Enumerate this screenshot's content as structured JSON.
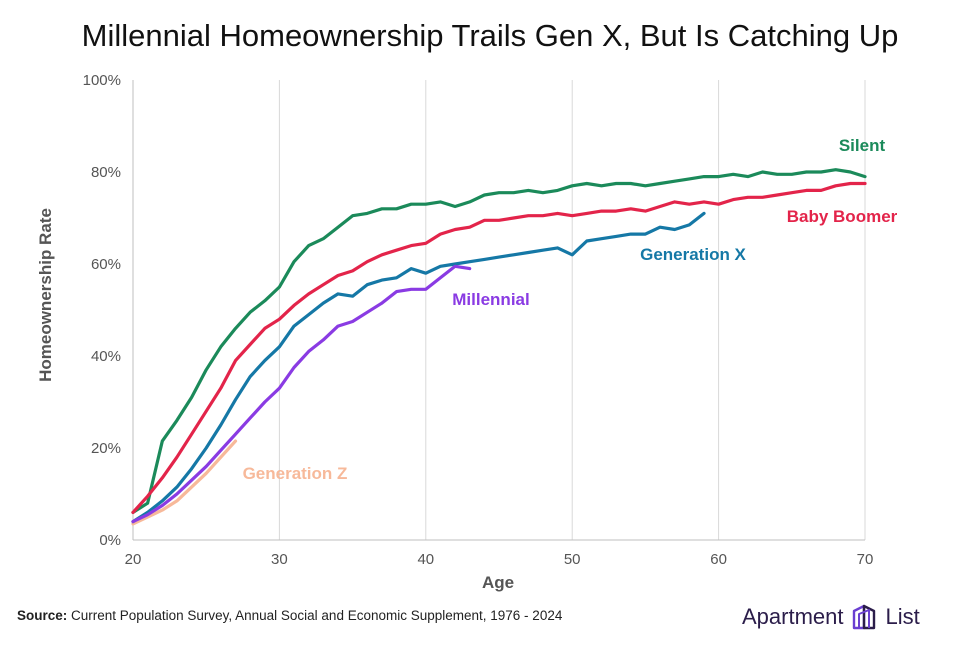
{
  "chart_data": {
    "type": "line",
    "title": "Millennial Homeownership Trails Gen X, But Is Catching Up",
    "xlabel": "Age",
    "ylabel": "Homeownership Rate",
    "xlim": [
      20,
      70
    ],
    "ylim": [
      0,
      100
    ],
    "xticks": [
      20,
      30,
      40,
      50,
      60,
      70
    ],
    "yticks": [
      0,
      20,
      40,
      60,
      80,
      100
    ],
    "ytick_labels": [
      "0%",
      "20%",
      "40%",
      "60%",
      "80%",
      "100%"
    ],
    "grid": "vertical",
    "series": [
      {
        "name": "Silent",
        "color": "#1b8a5a",
        "x": [
          20,
          21,
          22,
          23,
          24,
          25,
          26,
          27,
          28,
          29,
          30,
          31,
          32,
          33,
          34,
          35,
          36,
          37,
          38,
          39,
          40,
          41,
          42,
          43,
          44,
          45,
          46,
          47,
          48,
          49,
          50,
          51,
          52,
          53,
          54,
          55,
          56,
          57,
          58,
          59,
          60,
          61,
          62,
          63,
          64,
          65,
          66,
          67,
          68,
          69,
          70
        ],
        "y": [
          6,
          8,
          21.5,
          26,
          31,
          37,
          42,
          46,
          49.5,
          52,
          55,
          60.5,
          64,
          65.5,
          68,
          70.5,
          71,
          72,
          72,
          73,
          73,
          73.5,
          72.5,
          73.5,
          75,
          75.5,
          75.5,
          76,
          75.5,
          76,
          77,
          77.5,
          77,
          77.5,
          77.5,
          77,
          77.5,
          78,
          78.5,
          79,
          79,
          79.5,
          79,
          80,
          79.5,
          79.5,
          80,
          80,
          80.5,
          80,
          79
        ]
      },
      {
        "name": "Baby Boomer",
        "color": "#e3244a",
        "x": [
          20,
          21,
          22,
          23,
          24,
          25,
          26,
          27,
          28,
          29,
          30,
          31,
          32,
          33,
          34,
          35,
          36,
          37,
          38,
          39,
          40,
          41,
          42,
          43,
          44,
          45,
          46,
          47,
          48,
          49,
          50,
          51,
          52,
          53,
          54,
          55,
          56,
          57,
          58,
          59,
          60,
          61,
          62,
          63,
          64,
          65,
          66,
          67,
          68,
          69,
          70
        ],
        "y": [
          6,
          9.5,
          13.5,
          18,
          23,
          28,
          33,
          39,
          42.5,
          46,
          48,
          51,
          53.5,
          55.5,
          57.5,
          58.5,
          60.5,
          62,
          63,
          64,
          64.5,
          66.5,
          67.5,
          68,
          69.5,
          69.5,
          70,
          70.5,
          70.5,
          71,
          70.5,
          71,
          71.5,
          71.5,
          72,
          71.5,
          72.5,
          73.5,
          73,
          73.5,
          73,
          74,
          74.5,
          74.5,
          75,
          75.5,
          76,
          76,
          77,
          77.5,
          77.5
        ]
      },
      {
        "name": "Generation X",
        "color": "#1578a6",
        "x": [
          20,
          21,
          22,
          23,
          24,
          25,
          26,
          27,
          28,
          29,
          30,
          31,
          32,
          33,
          34,
          35,
          36,
          37,
          38,
          39,
          40,
          41,
          42,
          43,
          44,
          45,
          46,
          47,
          48,
          49,
          50,
          51,
          52,
          53,
          54,
          55,
          56,
          57,
          58,
          59
        ],
        "y": [
          4,
          6,
          8.5,
          11.5,
          15.5,
          20,
          25,
          30.5,
          35.5,
          39,
          42,
          46.5,
          49,
          51.5,
          53.5,
          53,
          55.5,
          56.5,
          57,
          59,
          58,
          59.5,
          60,
          60.5,
          61,
          61.5,
          62,
          62.5,
          63,
          63.5,
          62,
          65,
          65.5,
          66,
          66.5,
          66.5,
          68,
          67.5,
          68.5,
          71
        ]
      },
      {
        "name": "Millennial",
        "color": "#8a3be3",
        "x": [
          20,
          21,
          22,
          23,
          24,
          25,
          26,
          27,
          28,
          29,
          30,
          31,
          32,
          33,
          34,
          35,
          36,
          37,
          38,
          39,
          40,
          41,
          42,
          43
        ],
        "y": [
          4,
          5.5,
          7.5,
          10,
          13,
          16,
          19.5,
          23,
          26.5,
          30,
          33,
          37.5,
          41,
          43.5,
          46.5,
          47.5,
          49.5,
          51.5,
          54,
          54.5,
          54.5,
          57,
          59.5,
          59
        ]
      },
      {
        "name": "Generation Z",
        "color": "#f7b99a",
        "x": [
          20,
          21,
          22,
          23,
          24,
          25,
          26,
          27
        ],
        "y": [
          3.5,
          5,
          6.5,
          8.5,
          11.5,
          14.5,
          18,
          21.5
        ]
      }
    ],
    "annotations": [
      {
        "text": "Silent",
        "series": 0
      },
      {
        "text": "Baby Boomer",
        "series": 1
      },
      {
        "text": "Generation X",
        "series": 2
      },
      {
        "text": "Millennial",
        "series": 3
      },
      {
        "text": "Generation Z",
        "series": 4
      }
    ]
  },
  "source": {
    "label": "Source:",
    "text": "Current Population Survey, Annual Social and Economic Supplement, 1976 - 2024"
  },
  "brand": {
    "left": "Apartment",
    "right": "List",
    "color": "#6a3fd1"
  }
}
